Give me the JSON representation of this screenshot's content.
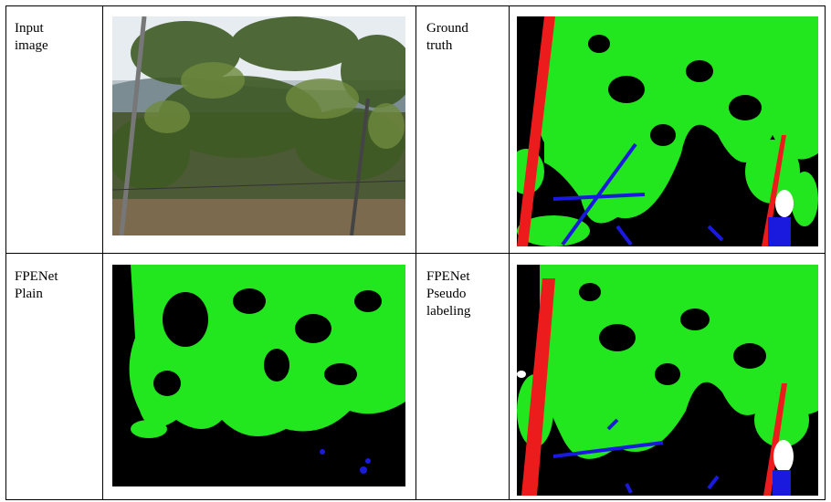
{
  "table": {
    "rows": [
      [
        "Input image",
        "Ground truth"
      ],
      [
        "FPENet Plain",
        "FPENet Pseudo labeling"
      ]
    ]
  }
}
